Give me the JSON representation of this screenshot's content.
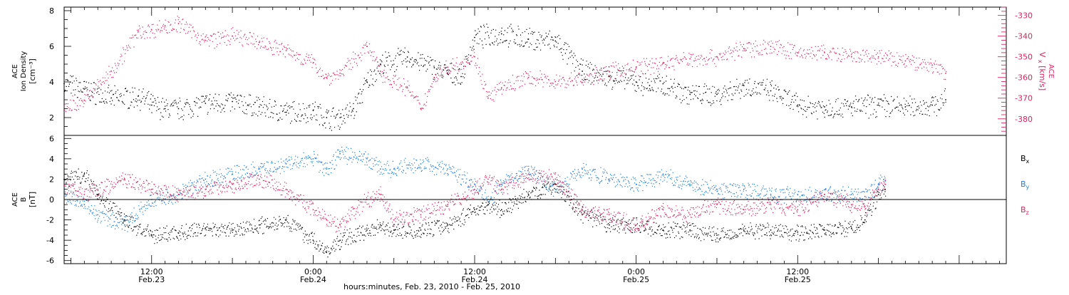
{
  "chart_data": [
    {
      "type": "scatter",
      "panel": "top",
      "ylabel_left": [
        "ACE",
        "Ion Density",
        "[cm⁻³]"
      ],
      "ylabel_right": [
        "ACE",
        "V",
        "x",
        "[km/s]"
      ],
      "ylim_left": [
        1,
        8.2
      ],
      "ylim_right": [
        -388,
        -326
      ],
      "yticks_left": [
        2,
        4,
        6,
        8
      ],
      "yticks_right": [
        -330,
        -340,
        -350,
        -360,
        -370,
        -380
      ],
      "xlim_hours": [
        5.5,
        75.5
      ],
      "series": [
        {
          "axis": "left",
          "color": "#000000",
          "x": [
            5.5,
            7,
            9,
            11,
            12,
            13,
            14,
            16,
            18,
            20,
            22,
            24,
            25,
            26,
            27,
            28,
            29,
            31,
            33,
            34,
            35,
            36,
            38,
            40,
            42,
            44,
            46,
            48,
            49,
            50,
            52,
            54,
            56,
            58,
            60,
            62,
            64,
            66,
            68,
            70,
            71
          ],
          "y": [
            3.9,
            3.6,
            3.1,
            3.2,
            2.7,
            2.5,
            2.5,
            2.8,
            2.9,
            2.6,
            2.3,
            2.4,
            2.0,
            2.0,
            2.5,
            4.0,
            5.0,
            5.4,
            4.8,
            4.5,
            4.3,
            6.5,
            6.7,
            6.4,
            6.3,
            4.6,
            4.3,
            4.0,
            3.8,
            3.9,
            3.3,
            3.3,
            3.8,
            3.5,
            2.7,
            2.6,
            2.6,
            2.7,
            2.6,
            2.7,
            3.0
          ]
        },
        {
          "axis": "right",
          "color": "#e0245e",
          "x": [
            5.5,
            7,
            9,
            11,
            12,
            13,
            14,
            16,
            18,
            20,
            22,
            24,
            25,
            26,
            28,
            29,
            30,
            31,
            32,
            33,
            34,
            36,
            37,
            38,
            40,
            41,
            42,
            44,
            46,
            48,
            50,
            52,
            54,
            56,
            58,
            60,
            62,
            64,
            66,
            68,
            70,
            71
          ],
          "y": [
            -374,
            -371,
            -357,
            -338,
            -337,
            -335,
            -334,
            -342,
            -340,
            -343,
            -347,
            -353,
            -360,
            -358,
            -345,
            -357,
            -362,
            -365,
            -375,
            -360,
            -355,
            -350,
            -370,
            -365,
            -360,
            -361,
            -362,
            -361,
            -357,
            -355,
            -353,
            -351,
            -350,
            -346,
            -345,
            -348,
            -348,
            -350,
            -350,
            -352,
            -354,
            -358
          ]
        }
      ]
    },
    {
      "type": "scatter",
      "panel": "bottom",
      "ylabel": [
        "ACE",
        "B",
        "[nT]"
      ],
      "ylim": [
        -6.3,
        6.3
      ],
      "yticks": [
        -6,
        -4,
        -2,
        0,
        2,
        4,
        6
      ],
      "xlim_hours": [
        5.5,
        75.5
      ],
      "reference_line": 0,
      "xaxis": {
        "title": "hours:minutes, Feb. 23, 2010 - Feb. 25, 2010",
        "ticks": [
          {
            "hour": 12,
            "time": "12:00",
            "date": "Feb.23"
          },
          {
            "hour": 24,
            "time": "0:00",
            "date": "Feb.24"
          },
          {
            "hour": 36,
            "time": "12:00",
            "date": "Feb.24"
          },
          {
            "hour": 48,
            "time": "0:00",
            "date": "Feb.25"
          },
          {
            "hour": 60,
            "time": "12:00",
            "date": "Feb.25"
          }
        ]
      },
      "legend_position": "right",
      "series": [
        {
          "name": "B",
          "sub": "x",
          "color": "#000000",
          "x": [
            5.5,
            7,
            8,
            10,
            12,
            14,
            16,
            18,
            20,
            22,
            24,
            25,
            26,
            28,
            29,
            30,
            32,
            34,
            36,
            37,
            38,
            40,
            42,
            44,
            46,
            48,
            50,
            52,
            54,
            56,
            58,
            60,
            62,
            64,
            65,
            66,
            66.5
          ],
          "y": [
            2.0,
            2.5,
            0.5,
            -2.0,
            -3.5,
            -3.3,
            -2.8,
            -3.0,
            -2.5,
            -2.0,
            -4.0,
            -5.2,
            -4.0,
            -3.0,
            -2.5,
            -3.0,
            -3.0,
            -2.5,
            -1.0,
            -0.5,
            -1.0,
            0.5,
            1.5,
            -1.5,
            -2.5,
            -2.5,
            -3.0,
            -3.0,
            -3.5,
            -3.0,
            -3.0,
            -3.2,
            -3.0,
            -2.8,
            -2.0,
            0.5,
            1.0
          ]
        },
        {
          "name": "B",
          "sub": "y",
          "color": "#1e7fdc",
          "x": [
            5.5,
            7,
            8,
            10,
            12,
            14,
            16,
            18,
            20,
            22,
            24,
            25,
            26,
            28,
            29,
            30,
            32,
            34,
            36,
            37,
            38,
            40,
            42,
            44,
            46,
            48,
            50,
            52,
            54,
            56,
            58,
            60,
            62,
            64,
            65,
            66,
            66.5
          ],
          "y": [
            0.5,
            -0.5,
            -1.5,
            -2.5,
            0.0,
            0.5,
            2.0,
            2.5,
            3.0,
            3.5,
            4.0,
            3.0,
            4.5,
            4.0,
            3.0,
            3.0,
            3.5,
            3.0,
            1.5,
            0.0,
            1.5,
            3.0,
            1.0,
            3.0,
            2.0,
            1.5,
            2.5,
            1.5,
            1.0,
            1.0,
            0.5,
            0.5,
            0.5,
            0.5,
            0.3,
            1.5,
            1.8
          ]
        },
        {
          "name": "B",
          "sub": "z",
          "color": "#e0245e",
          "x": [
            5.5,
            7,
            8,
            10,
            12,
            14,
            16,
            18,
            20,
            22,
            24,
            25,
            26,
            28,
            29,
            30,
            32,
            34,
            36,
            37,
            38,
            40,
            42,
            44,
            46,
            48,
            50,
            52,
            54,
            56,
            58,
            60,
            62,
            64,
            65,
            66,
            66.5
          ],
          "y": [
            1.5,
            0.5,
            1.0,
            2.0,
            1.0,
            0.5,
            1.0,
            1.5,
            2.0,
            1.0,
            -1.0,
            -2.0,
            -2.5,
            0.0,
            0.5,
            -2.0,
            -1.5,
            -0.5,
            1.0,
            2.0,
            1.0,
            2.5,
            2.0,
            -1.0,
            -1.5,
            -2.5,
            -1.0,
            -1.5,
            -0.5,
            -1.0,
            -0.5,
            -1.0,
            0.5,
            -0.5,
            -0.7,
            1.0,
            1.5
          ]
        }
      ]
    }
  ]
}
